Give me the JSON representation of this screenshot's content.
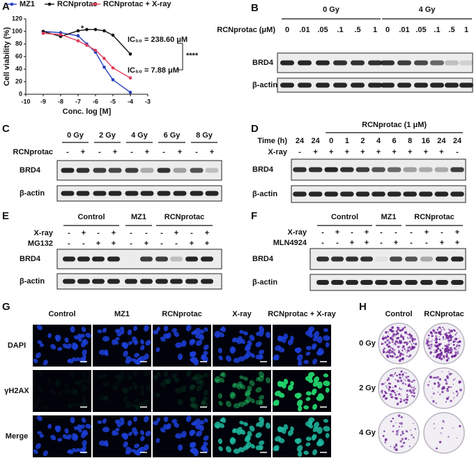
{
  "chart_data": {
    "type": "line",
    "panel_label": "A",
    "x_label": "Conc. log [M]",
    "y_label": "Cell viability (%)",
    "x": [
      -9,
      -8,
      -7,
      -6.5,
      -6,
      -5.5,
      -5,
      -4
    ],
    "series": [
      {
        "name": "MZ1",
        "color": "#2540c0",
        "values": [
          100,
          98,
          93,
          80,
          67,
          43,
          23,
          3
        ]
      },
      {
        "name": "RCNprotac",
        "color": "#111111",
        "values": [
          100,
          92,
          101,
          103,
          103,
          101,
          94,
          64
        ]
      },
      {
        "name": "RCNprotac + X-ray",
        "color": "#e03c5a",
        "values": [
          97,
          95,
          85,
          78,
          70,
          57,
          42,
          26
        ]
      }
    ],
    "xlim": [
      -10,
      -3
    ],
    "ylim": [
      0,
      120
    ],
    "xticks": [
      -10,
      -9,
      -8,
      -7,
      -6,
      -5,
      -4,
      -3
    ],
    "yticks": [
      0,
      20,
      40,
      60,
      80,
      100,
      120
    ],
    "legend": "top",
    "annotations": [
      {
        "text": "IC₅₀ = 238.60 μM",
        "color": "#111111"
      },
      {
        "text": "IC₅₀ = 7.88 μM",
        "color": "#e03c5a"
      },
      {
        "text": "****",
        "color": "#111111"
      },
      {
        "text": "*",
        "color": "#111111"
      }
    ]
  },
  "blots": [
    {
      "label": "B",
      "groups": [
        {
          "text": "0 Gy"
        },
        {
          "text": "4 Gy"
        }
      ],
      "rows": [
        {
          "label": "RCNprotac (μM)",
          "cells": [
            "0",
            ".01",
            ".05",
            ".1",
            ".5",
            "1",
            "0",
            ".01",
            ".05",
            ".1",
            ".5",
            "1"
          ]
        }
      ],
      "proteins": [
        "BRD4",
        "β-actin"
      ]
    },
    {
      "label": "C",
      "groups": [
        {
          "text": "0 Gy"
        },
        {
          "text": "2 Gy"
        },
        {
          "text": "4 Gy"
        },
        {
          "text": "6 Gy"
        },
        {
          "text": "8 Gy",
          "color": "#8b1a1a"
        }
      ],
      "rows": [
        {
          "label": "RCNprotac",
          "cells": [
            "-",
            "+",
            "-",
            "+",
            "-",
            "+",
            "-",
            "+",
            "-",
            "+"
          ]
        }
      ],
      "proteins": [
        "BRD4",
        "β-actin"
      ]
    },
    {
      "label": "D",
      "groups": [
        {
          "text": "RCNprotac (1 μM)"
        }
      ],
      "rows": [
        {
          "label": "Time (h)",
          "cells": [
            "24",
            "24",
            "0",
            "1",
            "2",
            "4",
            "6",
            "8",
            "16",
            "24",
            "24"
          ]
        },
        {
          "label": "X-ray",
          "cells": [
            "-",
            "+",
            "+",
            "+",
            "+",
            "+",
            "+",
            "+",
            "+",
            "+",
            "-"
          ]
        }
      ],
      "proteins": [
        "BRD4",
        "β-actin"
      ]
    },
    {
      "label": "E",
      "groups": [
        {
          "text": "Control"
        },
        {
          "text": "MZ1"
        },
        {
          "text": "RCNprotac"
        }
      ],
      "rows": [
        {
          "label": "X-ray",
          "cells": [
            "-",
            "+",
            "-",
            "+",
            "-",
            "-",
            "-",
            "+",
            "-",
            "+"
          ]
        },
        {
          "label": "MG132",
          "cells": [
            "-",
            "-",
            "+",
            "+",
            "-",
            "+",
            "-",
            "-",
            "+",
            "+"
          ]
        }
      ],
      "proteins": [
        "BRD4",
        "β-actin"
      ]
    },
    {
      "label": "F",
      "groups": [
        {
          "text": "Control"
        },
        {
          "text": "MZ1"
        },
        {
          "text": "RCNprotac"
        }
      ],
      "rows": [
        {
          "label": "X-ray",
          "cells": [
            "-",
            "+",
            "-",
            "+",
            "-",
            "-",
            "-",
            "+",
            "-",
            "+"
          ]
        },
        {
          "label": "MLN4924",
          "cells": [
            "-",
            "-",
            "+",
            "+",
            "-",
            "+",
            "-",
            "-",
            "+",
            "+"
          ]
        }
      ],
      "proteins": [
        "BRD4",
        "β-actin"
      ]
    }
  ],
  "imaging": {
    "label": "G",
    "columns": [
      "Control",
      "MZ1",
      "RCNprotac",
      "X-ray",
      "RCNprotac + X-ray"
    ],
    "rows": [
      "DAPI",
      "γH2AX",
      "Merge"
    ]
  },
  "colony": {
    "label": "H",
    "columns": [
      "Control",
      "RCNprotac"
    ],
    "rows": [
      "0 Gy",
      "2 Gy",
      "4 Gy"
    ]
  }
}
